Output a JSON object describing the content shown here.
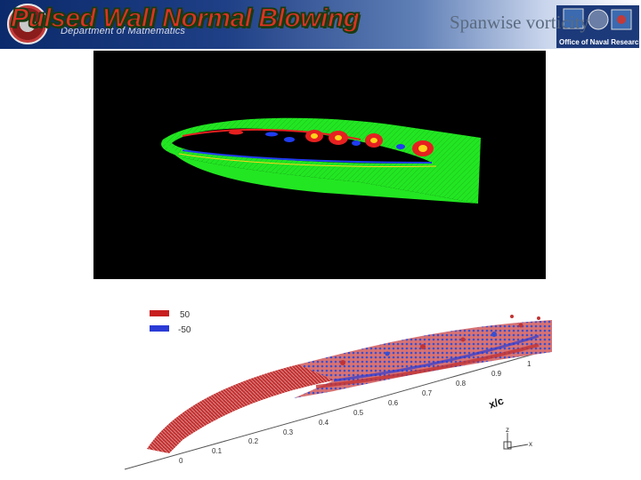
{
  "header": {
    "title": "Pulsed Wall Normal Blowing",
    "dept_text": "Department of Mathematics",
    "subtitle": "Spanwise vorticity",
    "onr_label": "Office of Naval Research"
  },
  "legend": {
    "items": [
      {
        "value": "50",
        "color": "#c81e1e"
      },
      {
        "value": "-50",
        "color": "#2a3bd6"
      }
    ]
  },
  "axis": {
    "label": "x/c",
    "ticks": [
      "0",
      "0.1",
      "0.2",
      "0.3",
      "0.4",
      "0.5",
      "0.6",
      "0.7",
      "0.8",
      "0.9",
      "1"
    ],
    "triad_labels": [
      "z",
      "x"
    ]
  },
  "colors": {
    "header_start": "#0b2a6b",
    "title_fill": "#e03222",
    "field_green": "#22e622",
    "vortex_red": "#e62020",
    "vortex_blue": "#1f3cf0"
  }
}
